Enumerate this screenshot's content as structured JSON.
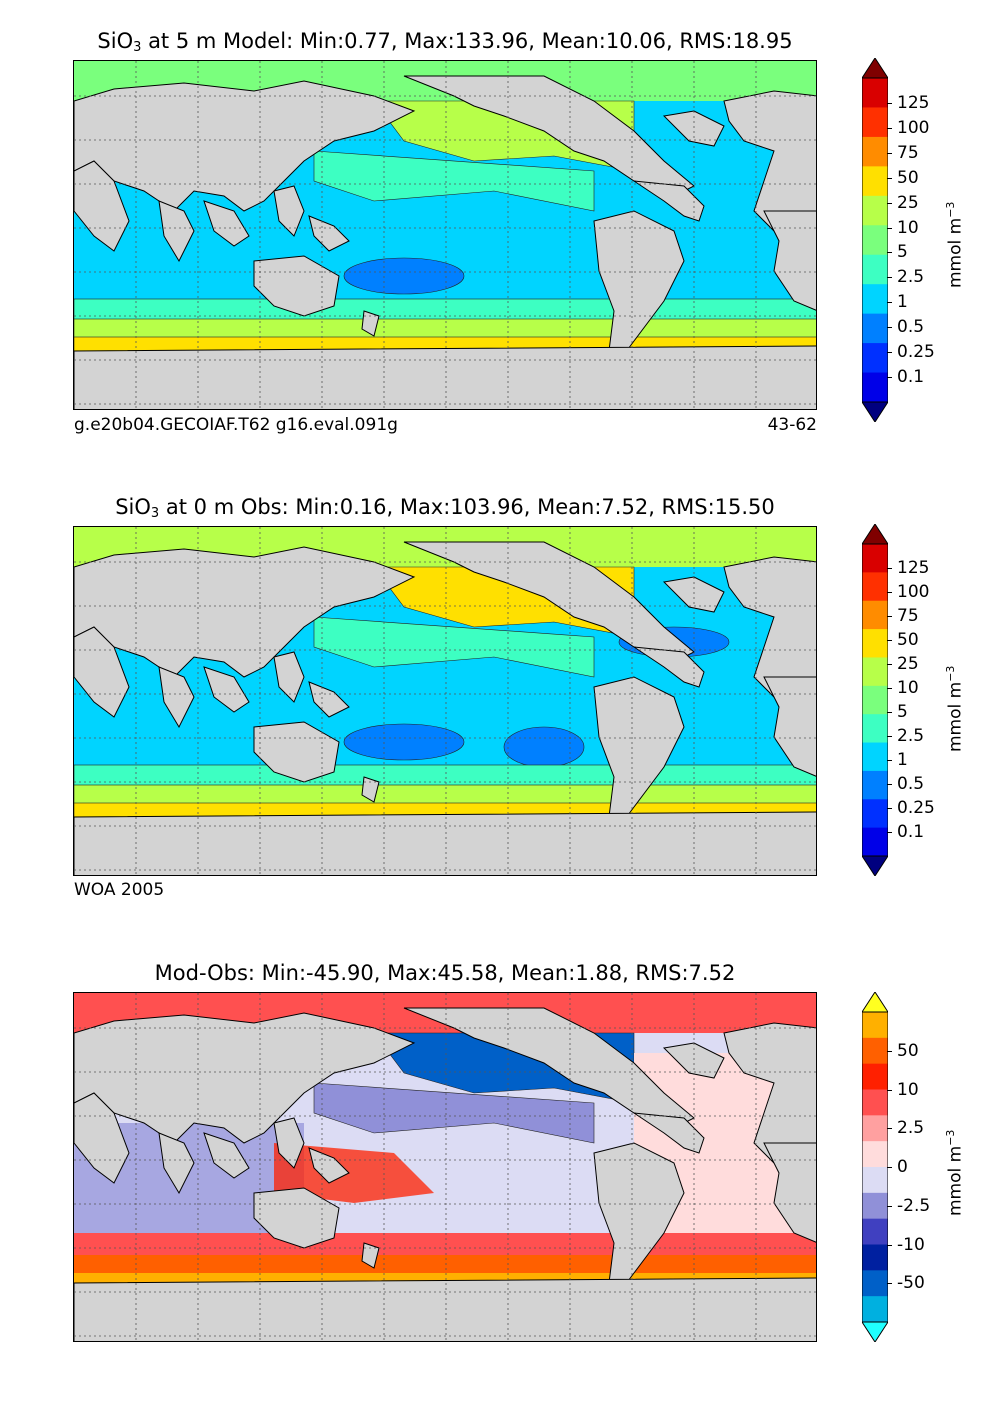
{
  "panels": [
    {
      "title_prefix": "SiO",
      "title_sub": "3",
      "title_suffix": " at 5 m Model: Min:0.77, Max:133.96, Mean:10.06, RMS:18.95",
      "caption_left": "g.e20b04.GECOIAF.T62 g16.eval.091g",
      "caption_right": "43-62",
      "colorbar": {
        "unit_base": "mmol m",
        "unit_exp": "−3",
        "ticks": [
          "125",
          "100",
          "75",
          "50",
          "25",
          "10",
          "5",
          "2.5",
          "1",
          "0.5",
          "0.25",
          "0.1"
        ],
        "colors": [
          "#7f0000",
          "#d90000",
          "#ff3000",
          "#ff8c00",
          "#ffe000",
          "#b7ff49",
          "#7aff7d",
          "#3dffc2",
          "#00d4ff",
          "#0080ff",
          "#0030ff",
          "#0000e8",
          "#00007f"
        ]
      }
    },
    {
      "title_prefix": "SiO",
      "title_sub": "3",
      "title_suffix": " at 0 m Obs: Min:0.16, Max:103.96, Mean:7.52, RMS:15.50",
      "caption_left": "WOA 2005",
      "caption_right": "",
      "colorbar": {
        "unit_base": "mmol m",
        "unit_exp": "−3",
        "ticks": [
          "125",
          "100",
          "75",
          "50",
          "25",
          "10",
          "5",
          "2.5",
          "1",
          "0.5",
          "0.25",
          "0.1"
        ],
        "colors": [
          "#7f0000",
          "#d90000",
          "#ff3000",
          "#ff8c00",
          "#ffe000",
          "#b7ff49",
          "#7aff7d",
          "#3dffc2",
          "#00d4ff",
          "#0080ff",
          "#0030ff",
          "#0000e8",
          "#00007f"
        ]
      }
    },
    {
      "title_prefix": "",
      "title_sub": "",
      "title_suffix": "Mod-Obs: Min:-45.90, Max:45.58, Mean:1.88, RMS:7.52",
      "caption_left": "",
      "caption_right": "",
      "colorbar": {
        "unit_base": "mmol m",
        "unit_exp": "−3",
        "ticks": [
          "50",
          "10",
          "2.5",
          "0",
          "-2.5",
          "-10",
          "-50"
        ],
        "colors": [
          "#ffff20",
          "#ffb000",
          "#ff6000",
          "#ff2000",
          "#ff5050",
          "#ffa0a0",
          "#ffdcdc",
          "#dcdcf4",
          "#9090d8",
          "#4040c0",
          "#0020a0",
          "#0060c8",
          "#00b0e0",
          "#20ffff"
        ]
      }
    }
  ],
  "map_colors": {
    "land": "#d3d3d3",
    "model": {
      "arctic": "#7aff7d",
      "north_pacific": "#b7ff49",
      "kuroshio": "#3dffc2",
      "tropics": "#00d4ff",
      "south_gyre": "#0080ff",
      "south_band1": "#3dffc2",
      "south_band2": "#b7ff49",
      "south_band3": "#ffe000",
      "southern": "#ff8c00"
    },
    "obs": {
      "arctic": "#b7ff49",
      "north_pacific": "#ffe000",
      "kuroshio": "#3dffc2",
      "tropics": "#00d4ff",
      "south_gyre": "#0080ff",
      "south_band1": "#3dffc2",
      "south_band2": "#b7ff49",
      "south_band3": "#ffe000",
      "southern": "#ff8c00"
    },
    "diff": {
      "arctic": "#ff5050",
      "north_pacific": "#0060c8",
      "kuroshio": "#9090d8",
      "tropics": "#dcdcf4",
      "atlantic": "#ffdcdc",
      "indian": "#9090d8",
      "south_band1": "#ff5050",
      "south_band2": "#ff6000",
      "southern": "#ffb000",
      "antarctic": "#0020a0"
    }
  }
}
